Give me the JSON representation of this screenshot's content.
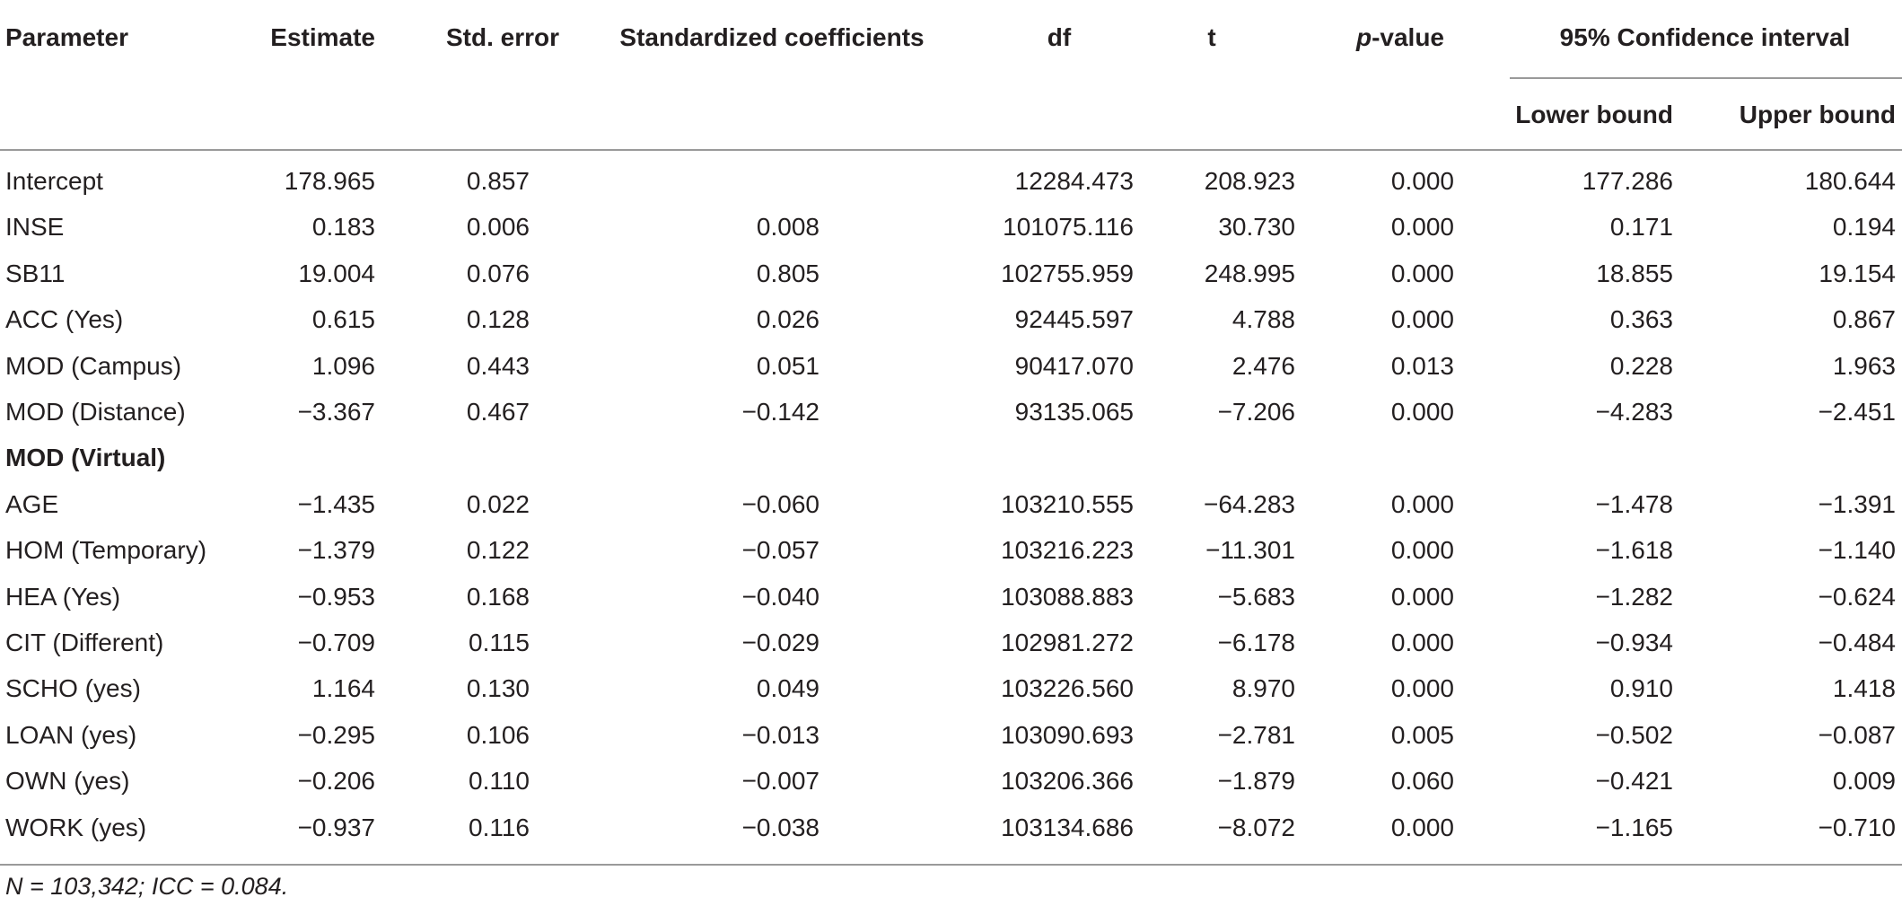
{
  "columns": {
    "parameter": "Parameter",
    "estimate": "Estimate",
    "std_error": "Std. error",
    "std_coef": "Standardized coefficients",
    "df": "df",
    "t": "t",
    "p_value_italic": "p",
    "p_value_rest": "-value",
    "ci": "95% Confidence interval",
    "lower": "Lower bound",
    "upper": "Upper bound"
  },
  "rows": [
    {
      "param": "Intercept",
      "estimate": "178.965",
      "se": "0.857",
      "beta": "",
      "df": "12284.473",
      "t": "208.923",
      "p": "0.000",
      "lower": "177.286",
      "upper": "180.644"
    },
    {
      "param": "INSE",
      "estimate": "0.183",
      "se": "0.006",
      "beta": "0.008",
      "df": "101075.116",
      "t": "30.730",
      "p": "0.000",
      "lower": "0.171",
      "upper": "0.194"
    },
    {
      "param": "SB11",
      "estimate": "19.004",
      "se": "0.076",
      "beta": "0.805",
      "df": "102755.959",
      "t": "248.995",
      "p": "0.000",
      "lower": "18.855",
      "upper": "19.154"
    },
    {
      "param": "ACC (Yes)",
      "estimate": "0.615",
      "se": "0.128",
      "beta": "0.026",
      "df": "92445.597",
      "t": "4.788",
      "p": "0.000",
      "lower": "0.363",
      "upper": "0.867"
    },
    {
      "param": "MOD (Campus)",
      "estimate": "1.096",
      "se": "0.443",
      "beta": "0.051",
      "df": "90417.070",
      "t": "2.476",
      "p": "0.013",
      "lower": "0.228",
      "upper": "1.963"
    },
    {
      "param": "MOD (Distance)",
      "estimate": "−3.367",
      "se": "0.467",
      "beta": "−0.142",
      "df": "93135.065",
      "t": "−7.206",
      "p": "0.000",
      "lower": "−4.283",
      "upper": "−2.451"
    },
    {
      "param": "MOD (Virtual)",
      "estimate": "",
      "se": "",
      "beta": "",
      "df": "",
      "t": "",
      "p": "",
      "lower": "",
      "upper": ""
    },
    {
      "param": "AGE",
      "estimate": "−1.435",
      "se": "0.022",
      "beta": "−0.060",
      "df": "103210.555",
      "t": "−64.283",
      "p": "0.000",
      "lower": "−1.478",
      "upper": "−1.391"
    },
    {
      "param": "HOM (Temporary)",
      "estimate": "−1.379",
      "se": "0.122",
      "beta": "−0.057",
      "df": "103216.223",
      "t": "−11.301",
      "p": "0.000",
      "lower": "−1.618",
      "upper": "−1.140"
    },
    {
      "param": "HEA (Yes)",
      "estimate": "−0.953",
      "se": "0.168",
      "beta": "−0.040",
      "df": "103088.883",
      "t": "−5.683",
      "p": "0.000",
      "lower": "−1.282",
      "upper": "−0.624"
    },
    {
      "param": "CIT (Different)",
      "estimate": "−0.709",
      "se": "0.115",
      "beta": "−0.029",
      "df": "102981.272",
      "t": "−6.178",
      "p": "0.000",
      "lower": "−0.934",
      "upper": "−0.484"
    },
    {
      "param": "SCHO (yes)",
      "estimate": "1.164",
      "se": "0.130",
      "beta": "0.049",
      "df": "103226.560",
      "t": "8.970",
      "p": "0.000",
      "lower": "0.910",
      "upper": "1.418"
    },
    {
      "param": "LOAN (yes)",
      "estimate": "−0.295",
      "se": "0.106",
      "beta": "−0.013",
      "df": "103090.693",
      "t": "−2.781",
      "p": "0.005",
      "lower": "−0.502",
      "upper": "−0.087"
    },
    {
      "param": "OWN (yes)",
      "estimate": "−0.206",
      "se": "0.110",
      "beta": "−0.007",
      "df": "103206.366",
      "t": "−1.879",
      "p": "0.060",
      "lower": "−0.421",
      "upper": "0.009"
    },
    {
      "param": "WORK (yes)",
      "estimate": "−0.937",
      "se": "0.116",
      "beta": "−0.038",
      "df": "103134.686",
      "t": "−8.072",
      "p": "0.000",
      "lower": "−1.165",
      "upper": "−0.710"
    }
  ],
  "bold_rows": [
    "MOD (Virtual)"
  ],
  "footnote": "N = 103,342; ICC = 0.084."
}
